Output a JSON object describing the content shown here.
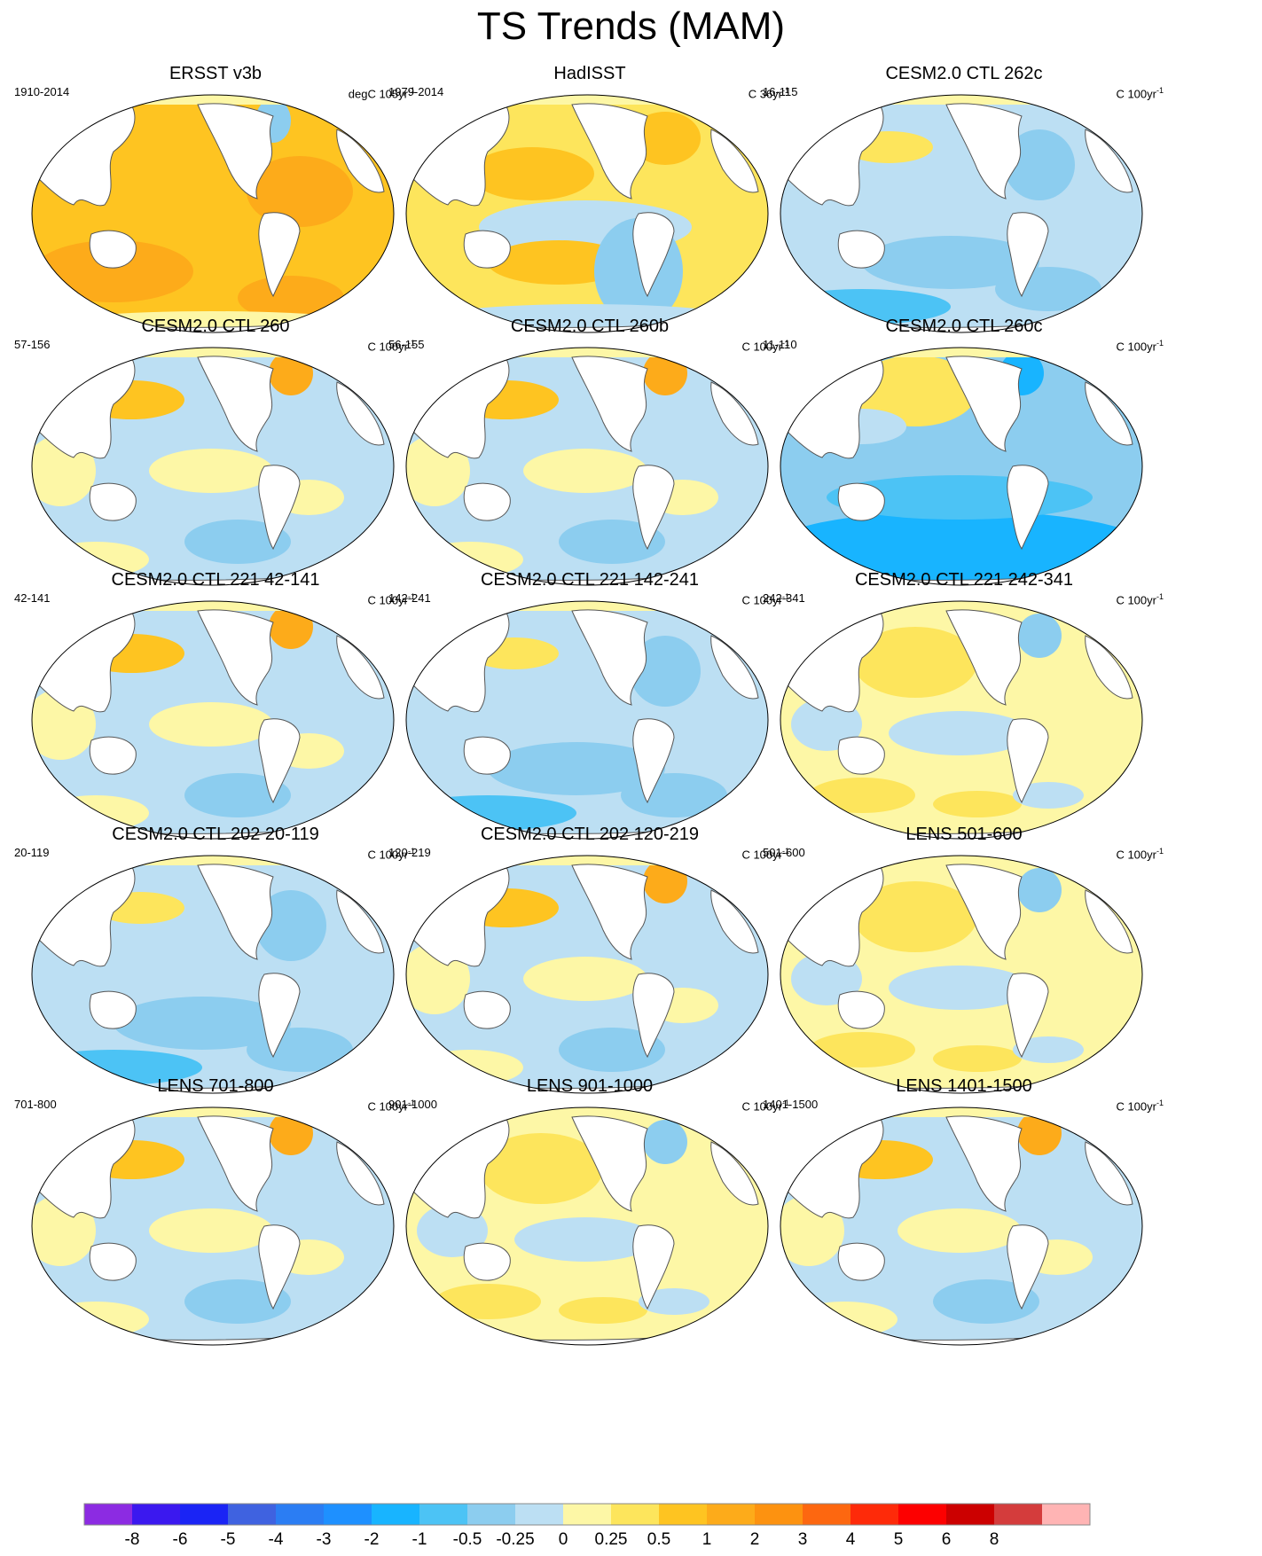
{
  "title": "TS Trends (MAM)",
  "panels": [
    {
      "title": "ERSST v3b",
      "period": "1910-2014",
      "units_base": "degC 105yr",
      "units_exp": "-1",
      "pattern": "warm"
    },
    {
      "title": "HadISST",
      "period": "1979-2014",
      "units_base": "C 36yr",
      "units_exp": "-1",
      "pattern": "hadisst"
    },
    {
      "title": "CESM2.0 CTL 262c",
      "period": "16-115",
      "units_base": "C 100yr",
      "units_exp": "-1",
      "pattern": "cool"
    },
    {
      "title": "CESM2.0 CTL 260",
      "period": "57-156",
      "units_base": "C 100yr",
      "units_exp": "-1",
      "pattern": "mixed"
    },
    {
      "title": "CESM2.0 CTL 260b",
      "period": "56-155",
      "units_base": "C 100yr",
      "units_exp": "-1",
      "pattern": "mixed"
    },
    {
      "title": "CESM2.0 CTL 260c",
      "period": "11-110",
      "units_base": "C 100yr",
      "units_exp": "-1",
      "pattern": "cold"
    },
    {
      "title": "CESM2.0 CTL 221 42-141",
      "period": "42-141",
      "units_base": "C 100yr",
      "units_exp": "-1",
      "pattern": "mixed"
    },
    {
      "title": "CESM2.0 CTL 221 142-241",
      "period": "142-241",
      "units_base": "C 100yr",
      "units_exp": "-1",
      "pattern": "cool"
    },
    {
      "title": "CESM2.0 CTL 221 242-341",
      "period": "242-341",
      "units_base": "C 100yr",
      "units_exp": "-1",
      "pattern": "mildwarm"
    },
    {
      "title": "CESM2.0 CTL 202 20-119",
      "period": "20-119",
      "units_base": "C 100yr",
      "units_exp": "-1",
      "pattern": "cool"
    },
    {
      "title": "CESM2.0 CTL 202 120-219",
      "period": "120-219",
      "units_base": "C 100yr",
      "units_exp": "-1",
      "pattern": "mixed"
    },
    {
      "title": "LENS 501-600",
      "period": "501-600",
      "units_base": "C 100yr",
      "units_exp": "-1",
      "pattern": "mildwarm"
    },
    {
      "title": "LENS 701-800",
      "period": "701-800",
      "units_base": "C 100yr",
      "units_exp": "-1",
      "pattern": "mixed"
    },
    {
      "title": "LENS 901-1000",
      "period": "901-1000",
      "units_base": "C 100yr",
      "units_exp": "-1",
      "pattern": "mildwarm"
    },
    {
      "title": "LENS 1401-1500",
      "period": "1401-1500",
      "units_base": "C 100yr",
      "units_exp": "-1",
      "pattern": "mixed"
    }
  ],
  "colorbar": {
    "colors": [
      "#8c2be2",
      "#3b18ef",
      "#1a24f5",
      "#3f62e0",
      "#2b7df3",
      "#1e90ff",
      "#18b4ff",
      "#4cc3f5",
      "#8ccdef",
      "#bcdff3",
      "#fdf7a6",
      "#fde55c",
      "#fec421",
      "#fdab1a",
      "#fd9210",
      "#fd6710",
      "#fe2a09",
      "#fd0000",
      "#cc0000",
      "#d43c3c",
      "#ffb4b4"
    ],
    "labels": [
      "-8",
      "-6",
      "-5",
      "-4",
      "-3",
      "-2",
      "-1",
      "-0.5",
      "-0.25",
      "0",
      "0.25",
      "0.5",
      "1",
      "2",
      "3",
      "4",
      "5",
      "6",
      "8"
    ]
  }
}
